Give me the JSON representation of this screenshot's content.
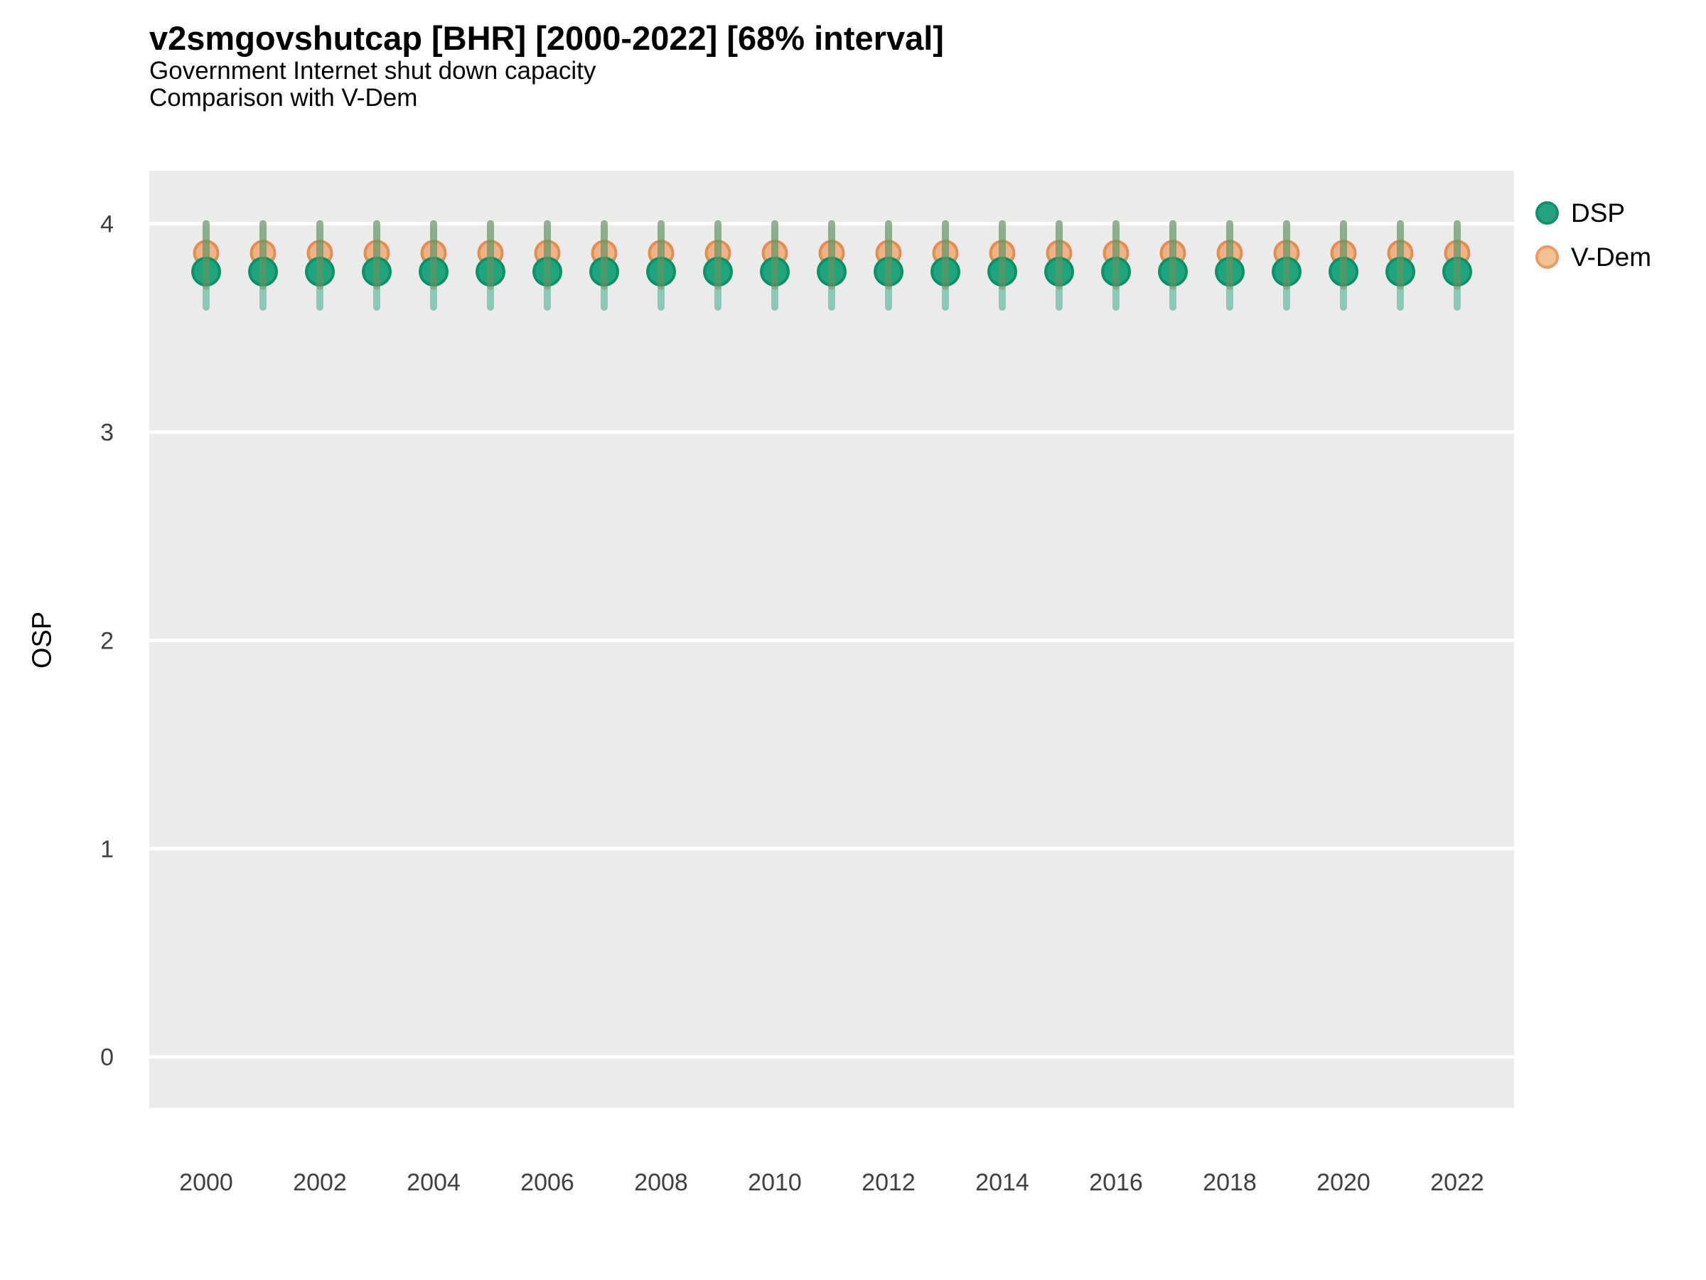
{
  "header": {
    "title": "v2smgovshutcap [BHR] [2000-2022] [68% interval]",
    "subtitle1": "Government Internet shut down capacity",
    "subtitle2": "Comparison with V-Dem"
  },
  "axes": {
    "ylabel": "OSP",
    "xlabel": ""
  },
  "legend": {
    "position": "right",
    "items": [
      {
        "label": "DSP",
        "fill": "#26a37e",
        "stroke": "#149070"
      },
      {
        "label": "V-Dem",
        "fill": "#f2c196",
        "stroke": "#e89c63"
      }
    ]
  },
  "colors": {
    "panel_background": "#ebebeb",
    "gridline": "#ffffff",
    "tick_text": "#404040",
    "dsp_point_fill": "#1ea47e",
    "dsp_point_stroke": "#0f9068",
    "dsp_interval": "#1b9e77",
    "dsp_interval_alpha": 0.45,
    "vdem_point_fill": "#eeb287",
    "vdem_point_stroke": "#e08e52",
    "vdem_interval": "#e0823c",
    "vdem_interval_alpha": 0.45
  },
  "chart_data": {
    "type": "pointinterval",
    "title": "v2smgovshutcap [BHR] [2000-2022] [68% interval]",
    "subtitle": [
      "Government Internet shut down capacity",
      "Comparison with V-Dem"
    ],
    "ylabel": "OSP",
    "xlabel": "",
    "interval_level": "68%",
    "grid": true,
    "legend_position": "right",
    "x": [
      2000,
      2001,
      2002,
      2003,
      2004,
      2005,
      2006,
      2007,
      2008,
      2009,
      2010,
      2011,
      2012,
      2013,
      2014,
      2015,
      2016,
      2017,
      2018,
      2019,
      2020,
      2021,
      2022
    ],
    "series": [
      {
        "name": "DSP",
        "points": [
          3.77,
          3.77,
          3.77,
          3.77,
          3.77,
          3.77,
          3.77,
          3.77,
          3.77,
          3.77,
          3.77,
          3.77,
          3.77,
          3.77,
          3.77,
          3.77,
          3.77,
          3.77,
          3.77,
          3.77,
          3.77,
          3.77,
          3.77
        ],
        "lower": [
          3.6,
          3.6,
          3.6,
          3.6,
          3.6,
          3.6,
          3.6,
          3.6,
          3.6,
          3.6,
          3.6,
          3.6,
          3.6,
          3.6,
          3.6,
          3.6,
          3.6,
          3.6,
          3.6,
          3.6,
          3.6,
          3.6,
          3.6
        ],
        "upper": [
          4.0,
          4.0,
          4.0,
          4.0,
          4.0,
          4.0,
          4.0,
          4.0,
          4.0,
          4.0,
          4.0,
          4.0,
          4.0,
          4.0,
          4.0,
          4.0,
          4.0,
          4.0,
          4.0,
          4.0,
          4.0,
          4.0,
          4.0
        ]
      },
      {
        "name": "V-Dem",
        "points": [
          3.86,
          3.86,
          3.86,
          3.86,
          3.86,
          3.86,
          3.86,
          3.86,
          3.86,
          3.86,
          3.86,
          3.86,
          3.86,
          3.86,
          3.86,
          3.86,
          3.86,
          3.86,
          3.86,
          3.86,
          3.86,
          3.86,
          3.86
        ],
        "lower": [
          3.7,
          3.7,
          3.7,
          3.7,
          3.7,
          3.7,
          3.7,
          3.7,
          3.7,
          3.7,
          3.7,
          3.7,
          3.7,
          3.7,
          3.7,
          3.7,
          3.7,
          3.7,
          3.7,
          3.7,
          3.7,
          3.7,
          3.7
        ],
        "upper": [
          4.0,
          4.0,
          4.0,
          4.0,
          4.0,
          4.0,
          4.0,
          4.0,
          4.0,
          4.0,
          4.0,
          4.0,
          4.0,
          4.0,
          4.0,
          4.0,
          4.0,
          4.0,
          4.0,
          4.0,
          4.0,
          4.0,
          4.0
        ]
      }
    ],
    "xticks": [
      2000,
      2002,
      2004,
      2006,
      2008,
      2010,
      2012,
      2014,
      2016,
      2018,
      2020,
      2022
    ],
    "yticks": [
      0,
      1,
      2,
      3,
      4
    ],
    "xlim": [
      1999,
      2023
    ],
    "ylim": [
      -0.245,
      4.255
    ]
  }
}
